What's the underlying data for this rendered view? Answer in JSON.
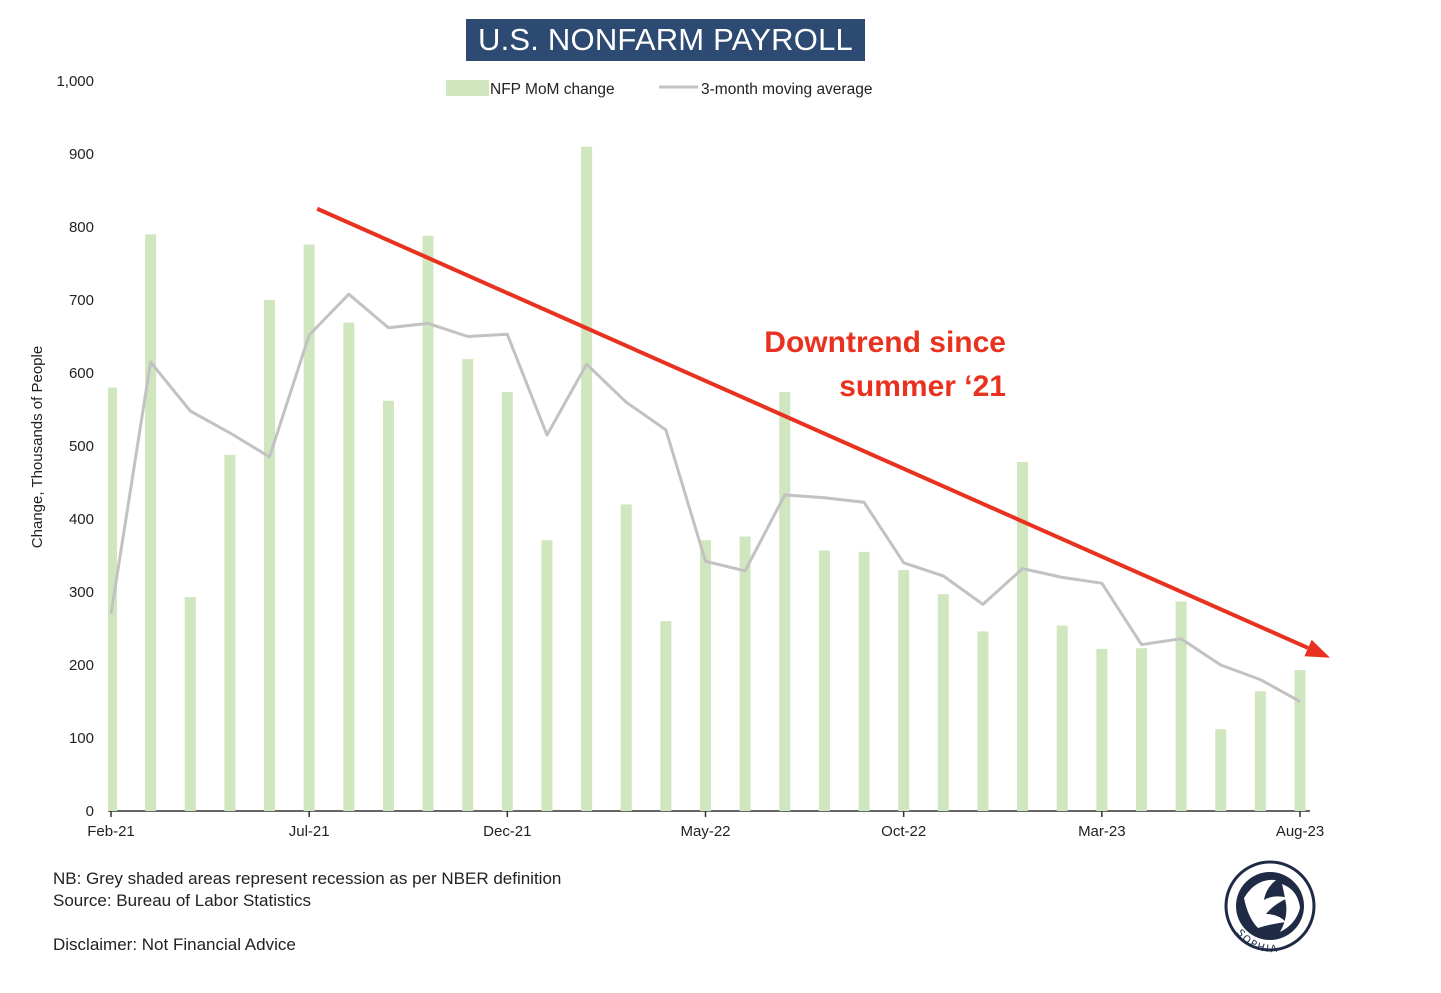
{
  "title": "U.S. NONFARM PAYROLL",
  "chart_data": {
    "type": "bar",
    "title": "U.S. NONFARM PAYROLL",
    "ylabel": "Change, Thousands of People",
    "xlabel": "",
    "ylim": [
      0,
      1000
    ],
    "yticks": [
      "0",
      "100",
      "200",
      "300",
      "400",
      "500",
      "600",
      "700",
      "800",
      "900",
      "1,000"
    ],
    "xtick_labels": [
      "Feb-21",
      "Jul-21",
      "Dec-21",
      "May-22",
      "Oct-22",
      "Mar-23",
      "Aug-23"
    ],
    "categories": [
      "Feb-21",
      "Mar-21",
      "Apr-21",
      "May-21",
      "Jun-21",
      "Jul-21",
      "Aug-21",
      "Sep-21",
      "Oct-21",
      "Nov-21",
      "Dec-21",
      "Jan-22",
      "Feb-22",
      "Mar-22",
      "Apr-22",
      "May-22",
      "Jun-22",
      "Jul-22",
      "Aug-22",
      "Sep-22",
      "Oct-22",
      "Nov-22",
      "Dec-22",
      "Jan-23",
      "Feb-23",
      "Mar-23",
      "Apr-23",
      "May-23",
      "Jun-23",
      "Jul-23",
      "Aug-23"
    ],
    "legend_position": "top-center",
    "series": [
      {
        "name": "NFP MoM change",
        "kind": "bar",
        "color": "#cfe6bf",
        "values": [
          580,
          790,
          293,
          488,
          700,
          776,
          669,
          562,
          788,
          619,
          574,
          371,
          910,
          420,
          260,
          371,
          376,
          574,
          357,
          355,
          330,
          297,
          246,
          478,
          254,
          222,
          223,
          287,
          112,
          164,
          193
        ]
      },
      {
        "name": "3-month moving average",
        "kind": "line",
        "color": "#c2c2c2",
        "values": [
          270,
          615,
          548,
          518,
          485,
          652,
          708,
          662,
          668,
          650,
          653,
          515,
          612,
          560,
          522,
          342,
          329,
          433,
          429,
          423,
          340,
          322,
          283,
          332,
          320,
          312,
          228,
          236,
          200,
          180,
          150
        ]
      }
    ],
    "annotations": {
      "trend_text_line1": "Downtrend since",
      "trend_text_line2": "summer ‘21",
      "trend_arrow_color": "#e8321f",
      "trend_arrow_from": {
        "x": "Jul-21",
        "y": 825
      },
      "trend_arrow_to": {
        "x": "Aug-23",
        "y": 210
      }
    }
  },
  "notes": {
    "nb": "NB: Grey shaded areas represent recession as per NBER definition",
    "source": "Source: Bureau of Labor Statistics",
    "disclaimer": "Disclaimer: Not Financial Advice"
  },
  "logo": {
    "text": "SOPHIA",
    "icon": "sophia-head-logo-icon"
  }
}
